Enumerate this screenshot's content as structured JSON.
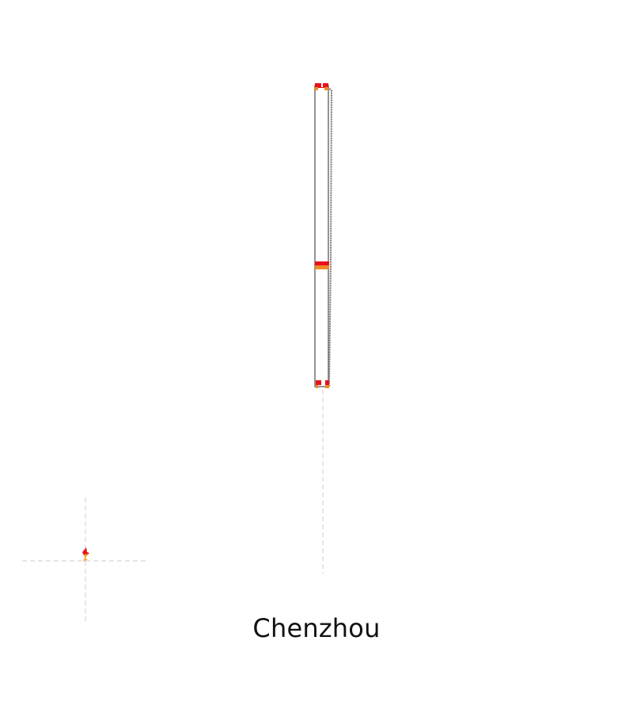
{
  "caption": "Chenzhou",
  "colors": {
    "background": "#ffffff",
    "outline": "#666666",
    "outline_dark": "#555555",
    "guide": "#c9c9c9",
    "red_marker": "#e8111b",
    "orange_marker": "#f08a24",
    "text": "#111111"
  },
  "icons": {
    "small_marker": "flame-marker-icon"
  }
}
